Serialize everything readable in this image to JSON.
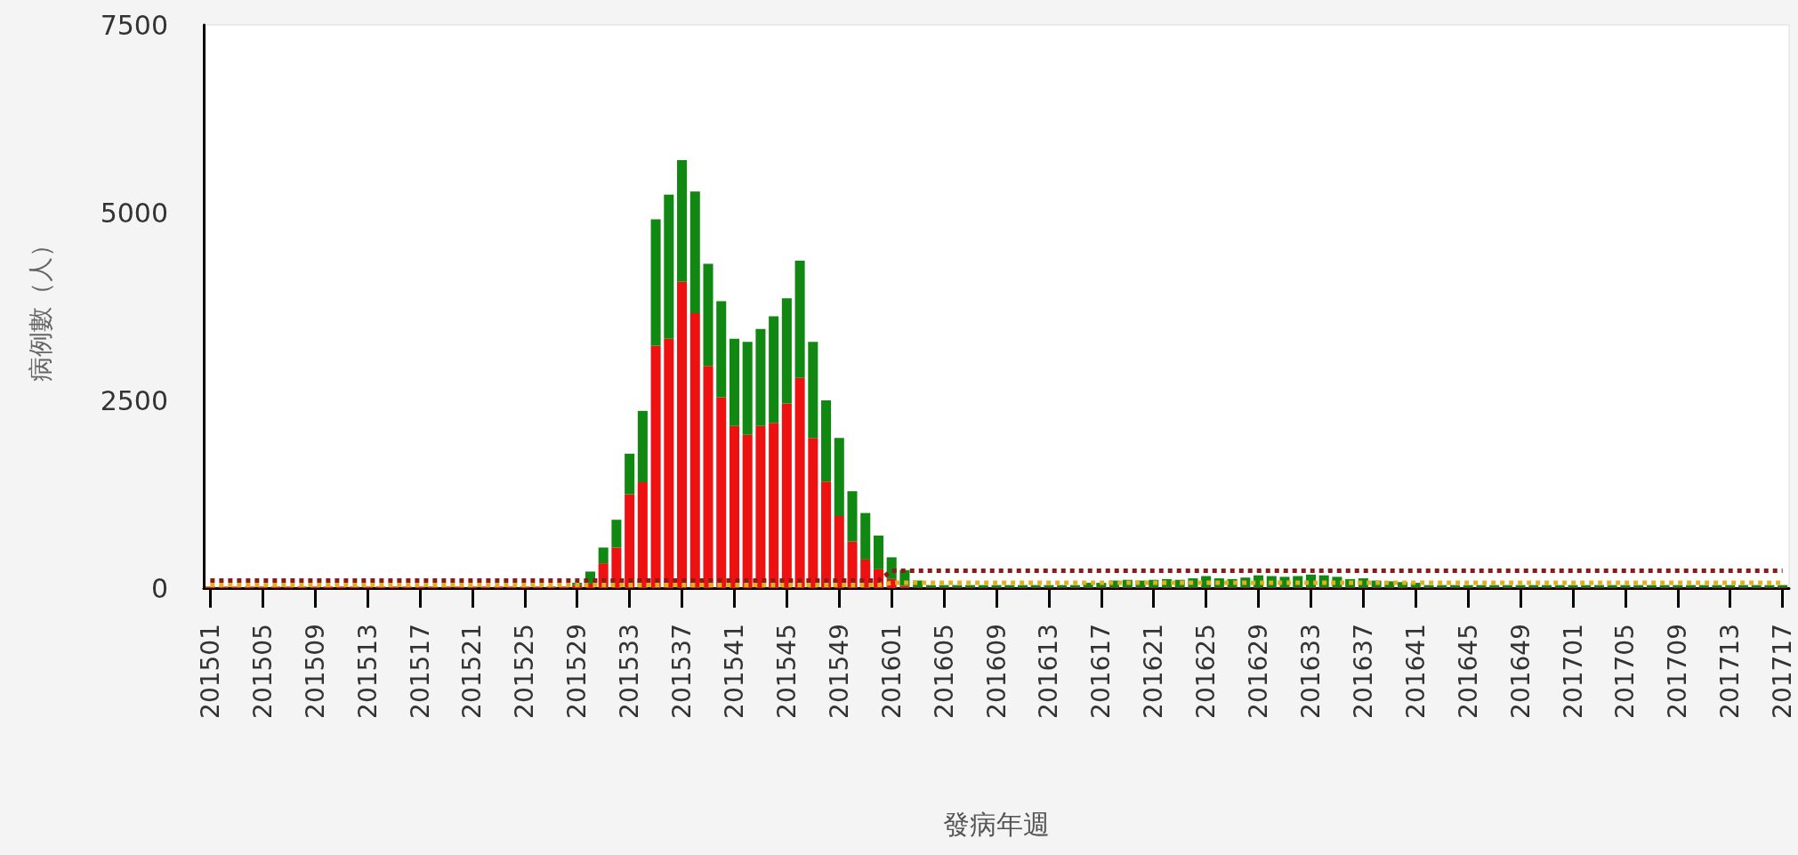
{
  "chart_data": {
    "type": "bar",
    "stacked": true,
    "xlabel": "發病年週",
    "ylabel": "病例數（人）",
    "categories": [
      "201501",
      null,
      null,
      null,
      "201505",
      null,
      null,
      null,
      "201509",
      null,
      null,
      null,
      "201513",
      null,
      null,
      null,
      "201517",
      null,
      null,
      null,
      "201521",
      null,
      null,
      null,
      "201525",
      null,
      null,
      null,
      "201529",
      null,
      null,
      null,
      "201533",
      null,
      null,
      null,
      "201537",
      null,
      null,
      null,
      "201541",
      null,
      null,
      null,
      "201545",
      null,
      null,
      null,
      "201549",
      null,
      null,
      null,
      "201601",
      null,
      null,
      null,
      "201605",
      null,
      null,
      null,
      "201609",
      null,
      null,
      null,
      "201613",
      null,
      null,
      null,
      "201617",
      null,
      null,
      null,
      "201621",
      null,
      null,
      null,
      "201625",
      null,
      null,
      null,
      "201629",
      null,
      null,
      null,
      "201633",
      null,
      null,
      null,
      "201637",
      null,
      null,
      null,
      "201641",
      null,
      null,
      null,
      "201645",
      null,
      null,
      null,
      "201649",
      null,
      null,
      null,
      "201701",
      null,
      null,
      null,
      "201705",
      null,
      null,
      null,
      "201709",
      null,
      null,
      null,
      "201713",
      null,
      null,
      null,
      "201717"
    ],
    "ylim": [
      0,
      7500
    ],
    "yticks": [
      0,
      2500,
      5000,
      7500
    ],
    "grid": false,
    "series": [
      {
        "color": "#ee1111",
        "values": [
          20,
          20,
          20,
          20,
          20,
          20,
          20,
          20,
          20,
          20,
          20,
          20,
          20,
          20,
          20,
          20,
          20,
          20,
          20,
          20,
          20,
          20,
          20,
          20,
          20,
          20,
          20,
          20,
          40,
          60,
          330,
          540,
          1250,
          1410,
          3230,
          3320,
          4080,
          3660,
          2960,
          2540,
          2160,
          2040,
          2160,
          2200,
          2460,
          2800,
          2000,
          1420,
          960,
          620,
          380,
          250,
          120,
          30,
          10,
          10,
          10,
          10,
          10,
          10,
          10,
          10,
          10,
          10,
          10,
          10,
          10,
          10,
          10,
          10,
          10,
          10,
          10,
          10,
          10,
          10,
          10,
          10,
          10,
          10,
          10,
          10,
          10,
          10,
          10,
          10,
          10,
          10,
          10,
          10,
          10,
          10,
          10,
          10,
          10,
          10,
          10,
          10,
          10,
          10,
          10,
          10,
          10,
          10,
          10,
          10,
          10,
          10,
          10,
          10,
          10,
          10,
          10,
          10,
          10,
          10,
          10,
          10,
          10,
          10,
          10
        ]
      },
      {
        "color": "#118811",
        "values": [
          null,
          null,
          null,
          null,
          null,
          null,
          null,
          null,
          null,
          null,
          null,
          null,
          null,
          null,
          null,
          null,
          null,
          null,
          null,
          null,
          null,
          null,
          null,
          null,
          null,
          null,
          null,
          null,
          30,
          160,
          210,
          370,
          540,
          950,
          1680,
          1920,
          1620,
          1620,
          1360,
          1280,
          1160,
          1240,
          1290,
          1420,
          1400,
          1560,
          1280,
          1080,
          1040,
          670,
          620,
          450,
          290,
          210,
          90,
          30,
          30,
          30,
          30,
          30,
          30,
          30,
          30,
          30,
          30,
          30,
          30,
          60,
          60,
          90,
          100,
          90,
          100,
          110,
          100,
          120,
          150,
          120,
          110,
          130,
          160,
          150,
          140,
          150,
          170,
          160,
          140,
          110,
          120,
          90,
          80,
          70,
          60,
          30,
          30,
          30,
          30,
          30,
          30,
          30,
          30,
          30,
          30,
          30,
          30,
          30,
          30,
          30,
          30,
          30,
          30,
          30,
          30,
          30,
          30,
          30,
          30,
          30,
          30,
          30,
          30
        ]
      },
      {
        "type": "line",
        "line_style": "dotted",
        "color": "#8b1a1a",
        "values": [
          100,
          100,
          100,
          100,
          100,
          100,
          100,
          100,
          100,
          100,
          100,
          100,
          100,
          100,
          100,
          100,
          100,
          100,
          100,
          100,
          100,
          100,
          100,
          100,
          100,
          100,
          100,
          100,
          100,
          100,
          100,
          100,
          100,
          100,
          100,
          100,
          100,
          100,
          100,
          100,
          100,
          100,
          100,
          100,
          100,
          100,
          100,
          100,
          100,
          100,
          100,
          100,
          230,
          230,
          230,
          230,
          230,
          230,
          230,
          230,
          230,
          230,
          230,
          230,
          230,
          230,
          230,
          230,
          230,
          230,
          230,
          230,
          230,
          230,
          230,
          230,
          230,
          230,
          230,
          230,
          230,
          230,
          230,
          230,
          230,
          230,
          230,
          230,
          230,
          230,
          230,
          230,
          230,
          230,
          230,
          230,
          230,
          230,
          230,
          230,
          230,
          230,
          230,
          230,
          230,
          230,
          230,
          230,
          230,
          230,
          230,
          230,
          230,
          230,
          230,
          230,
          230,
          230,
          230,
          230,
          230
        ]
      },
      {
        "type": "line",
        "line_style": "dotted",
        "color": "#e0b020",
        "values": [
          40,
          40,
          40,
          40,
          40,
          40,
          40,
          40,
          40,
          40,
          40,
          40,
          40,
          40,
          40,
          40,
          40,
          40,
          40,
          40,
          40,
          40,
          40,
          40,
          40,
          40,
          40,
          40,
          40,
          40,
          40,
          40,
          40,
          40,
          40,
          40,
          40,
          40,
          40,
          40,
          40,
          40,
          40,
          40,
          40,
          40,
          40,
          40,
          40,
          40,
          40,
          40,
          70,
          70,
          70,
          70,
          70,
          70,
          70,
          70,
          70,
          70,
          70,
          70,
          70,
          70,
          70,
          70,
          70,
          70,
          70,
          70,
          70,
          70,
          70,
          70,
          70,
          70,
          70,
          70,
          70,
          70,
          70,
          70,
          70,
          70,
          70,
          70,
          70,
          70,
          70,
          70,
          70,
          70,
          70,
          70,
          70,
          70,
          70,
          70,
          70,
          70,
          70,
          70,
          70,
          70,
          70,
          70,
          70,
          70,
          70,
          70,
          70,
          70,
          70,
          70,
          70,
          70,
          70,
          70,
          70
        ]
      }
    ]
  }
}
